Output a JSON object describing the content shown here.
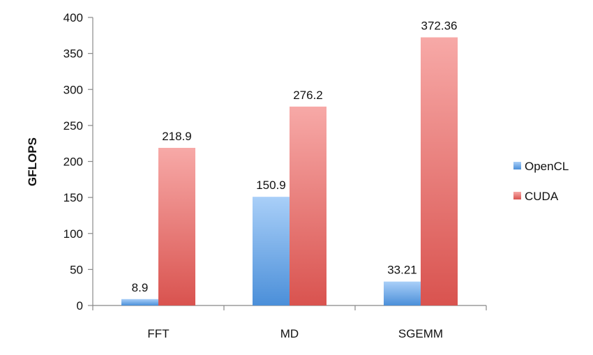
{
  "chart_data": {
    "type": "bar",
    "categories": [
      "FFT",
      "MD",
      "SGEMM"
    ],
    "series": [
      {
        "name": "OpenCL",
        "values": [
          8.9,
          150.9,
          33.21
        ],
        "labels": [
          "8.9",
          "150.9",
          "33.21"
        ],
        "color": "#6fa8e8"
      },
      {
        "name": "CUDA",
        "values": [
          218.9,
          276.2,
          372.36
        ],
        "labels": [
          "218.9",
          "276.2",
          "372.36"
        ],
        "color": "#e8706c"
      }
    ],
    "ylabel": "GFLOPS",
    "ylim": [
      0,
      400
    ],
    "yticks": [
      0,
      50,
      100,
      150,
      200,
      250,
      300,
      350,
      400
    ],
    "grid": false,
    "legend": "right"
  }
}
